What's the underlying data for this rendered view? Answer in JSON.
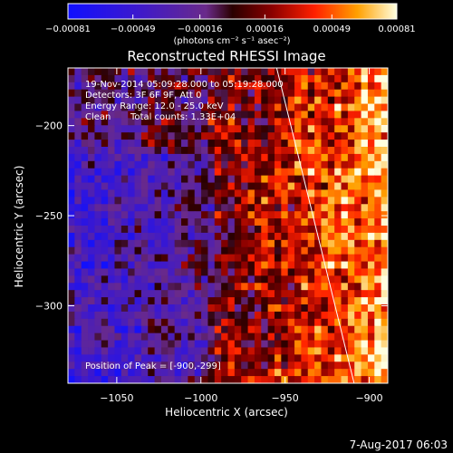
{
  "window": {
    "timestamp": "7-Aug-2017 06:03"
  },
  "colors": {
    "background": "#000000",
    "foreground": "#ffffff",
    "limb": "#ffffff"
  },
  "chart_data": {
    "type": "heatmap",
    "title": "Reconstructed RHESSI Image",
    "xlabel": "Heliocentric X (arcsec)",
    "ylabel": "Heliocentric Y (arcsec)",
    "xlim": [
      -1079,
      -889
    ],
    "ylim": [
      -343,
      -168
    ],
    "x_ticks": [
      -1050,
      -1000,
      -950,
      -900
    ],
    "x_tick_labels": [
      "−1050",
      "−1000",
      "−950",
      "−900"
    ],
    "y_ticks": [
      -200,
      -250,
      -300
    ],
    "y_tick_labels": [
      "−200",
      "−250",
      "−300"
    ],
    "colorbar": {
      "colormap": "hot-blue",
      "min": -0.00081,
      "max": 0.00081,
      "tick_values": [
        -0.00081,
        -0.00049,
        -0.00016,
        0.00016,
        0.00049,
        0.00081
      ],
      "tick_labels": [
        "−0.00081",
        "−0.00049",
        "−0.00016",
        "0.00016",
        "0.00049",
        "0.00081"
      ],
      "unit_label": "(photons cm⁻² s⁻¹ asec⁻²)"
    },
    "annotations": {
      "time_range": "19-Nov-2014 05:09:28.000 to 05:19:28.000",
      "detectors": "Detectors: 3F 6F 9F, Att 0",
      "energy": "Energy Range: 12.0 - 25.0 keV",
      "method": "Clean",
      "counts": "Total counts: 1.33E+04",
      "peak": "Position of Peak = [-900,-299]"
    },
    "peak": {
      "x": -900,
      "y": -299
    },
    "limb_line": [
      [
        -955,
        -168
      ],
      [
        -909,
        -343
      ]
    ],
    "image_grid": {
      "nx": 48,
      "ny": 44,
      "seed": 7
    }
  }
}
